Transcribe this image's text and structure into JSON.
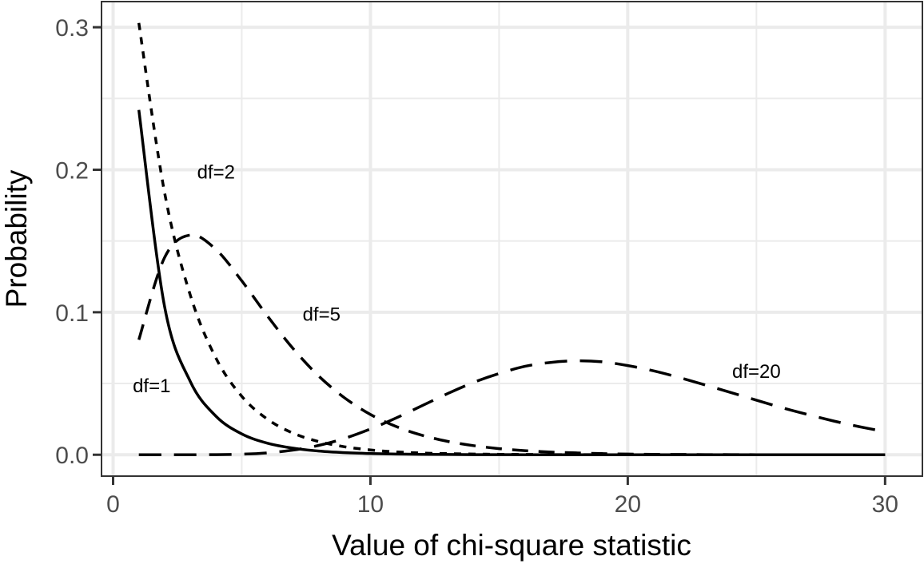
{
  "chart_data": {
    "type": "line",
    "title": "",
    "xlabel": "Value of chi-square statistic",
    "ylabel": "Probability",
    "xlim": [
      -0.45,
      31.45
    ],
    "ylim": [
      -0.015,
      0.318
    ],
    "x_ticks": [
      0,
      10,
      20,
      30
    ],
    "x_tick_labels": [
      "0",
      "10",
      "20",
      "30"
    ],
    "y_ticks": [
      0.0,
      0.1,
      0.2,
      0.3
    ],
    "y_tick_labels": [
      "0.0",
      "0.1",
      "0.2",
      "0.3"
    ],
    "grid": true,
    "legend": "none",
    "x": [
      1,
      2,
      3,
      4,
      5,
      6,
      7,
      8,
      9,
      10,
      11,
      12,
      13,
      14,
      15,
      16,
      17,
      18,
      19,
      20,
      21,
      22,
      23,
      24,
      25,
      26,
      27,
      28,
      29,
      30
    ],
    "series": [
      {
        "name": "df=1",
        "linetype": "solid",
        "values": [
          0.242,
          0.104,
          0.0514,
          0.027,
          0.0146,
          0.0081,
          0.0046,
          0.0026,
          0.0015,
          0.00085,
          0.0005,
          0.0003,
          0.0002,
          0.0001,
          0.0001,
          0,
          0,
          0,
          0,
          0,
          0,
          0,
          0,
          0,
          0,
          0,
          0,
          0,
          0,
          0
        ]
      },
      {
        "name": "df=2",
        "linetype": "dotted",
        "values": [
          0.303,
          0.184,
          0.112,
          0.0677,
          0.041,
          0.0249,
          0.0151,
          0.0092,
          0.0056,
          0.0034,
          0.002,
          0.0012,
          0.0008,
          0.0005,
          0.0003,
          0.0002,
          0.0001,
          0.0001,
          0,
          0,
          0,
          0,
          0,
          0,
          0,
          0,
          0,
          0,
          0,
          0
        ]
      },
      {
        "name": "df=5",
        "linetype": "dashed",
        "values": [
          0.0807,
          0.1384,
          0.1542,
          0.144,
          0.122,
          0.0973,
          0.0744,
          0.0551,
          0.0399,
          0.0283,
          0.0198,
          0.0137,
          0.0094,
          0.0064,
          0.0043,
          0.0029,
          0.0019,
          0.0013,
          0.0008,
          0.0005,
          0.0003,
          0.0002,
          0.0001,
          0.0001,
          0,
          0,
          0,
          0,
          0,
          0
        ]
      },
      {
        "name": "df=20",
        "linetype": "longdash",
        "values": [
          0,
          0,
          0,
          0.0001,
          0.0004,
          0.0013,
          0.0033,
          0.0066,
          0.0115,
          0.0181,
          0.0258,
          0.0344,
          0.0429,
          0.0507,
          0.057,
          0.062,
          0.0648,
          0.0659,
          0.0652,
          0.0626,
          0.0589,
          0.0542,
          0.049,
          0.0437,
          0.0383,
          0.033,
          0.0282,
          0.0237,
          0.0197,
          0.0162
        ]
      }
    ],
    "annotations": [
      {
        "text": "df=1",
        "x": 1.5,
        "y": 0.049
      },
      {
        "text": "df=2",
        "x": 4.0,
        "y": 0.199
      },
      {
        "text": "df=5",
        "x": 8.1,
        "y": 0.099
      },
      {
        "text": "df=20",
        "x": 25.0,
        "y": 0.059
      }
    ]
  }
}
